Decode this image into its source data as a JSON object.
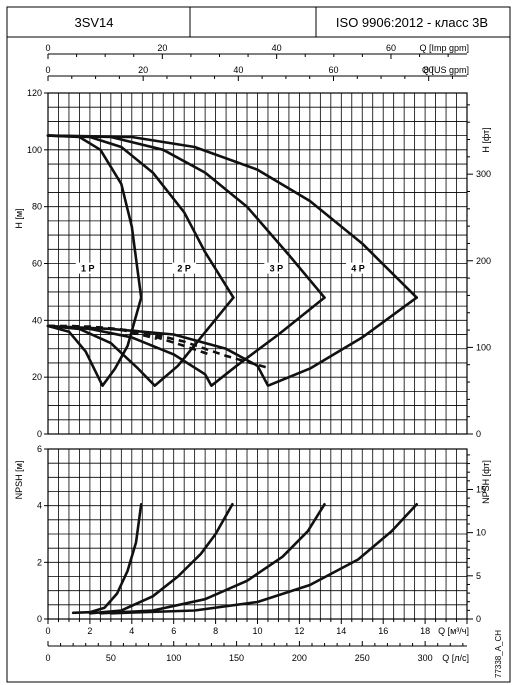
{
  "header": {
    "model": "3SV14",
    "standard": "ISO 9906:2012 - класс 3B"
  },
  "side_code": "77338_A_CH",
  "chart_data": [
    {
      "type": "line",
      "title": "",
      "ylabel": "H [м]",
      "ylabel_right": "H [фт]",
      "ylim": [
        0,
        120
      ],
      "yticks": [
        0,
        20,
        40,
        60,
        80,
        100,
        120
      ],
      "ylim_right": [
        0,
        393.7
      ],
      "yticks_right": [
        0,
        100,
        200,
        300
      ],
      "x_unit": "Q [м³/ч]",
      "xlim": [
        0,
        20
      ],
      "top_axes": [
        {
          "label": "Q [Imp gpm]",
          "ticks": [
            0,
            20,
            40,
            60
          ],
          "max": 73.3
        },
        {
          "label": "Q [US gpm]",
          "ticks": [
            0,
            20,
            40,
            60,
            80
          ],
          "max": 88.06
        }
      ],
      "grid": true,
      "curve_labels": [
        "1 P",
        "2 P",
        "3 P",
        "4 P"
      ],
      "series": [
        {
          "name": "1 P",
          "style": "solid",
          "points": [
            [
              0,
              105
            ],
            [
              1.5,
              104.5
            ],
            [
              2.5,
              100
            ],
            [
              3.5,
              88
            ],
            [
              4,
              73
            ],
            [
              4.45,
              48
            ]
          ]
        },
        {
          "name": "2 P",
          "style": "solid",
          "points": [
            [
              0,
              105
            ],
            [
              2,
              104.5
            ],
            [
              3.5,
              101
            ],
            [
              5,
              92
            ],
            [
              6.5,
              78
            ],
            [
              7.5,
              64
            ],
            [
              8.85,
              48
            ]
          ]
        },
        {
          "name": "3 P",
          "style": "solid",
          "points": [
            [
              0,
              105
            ],
            [
              3,
              104.5
            ],
            [
              5.5,
              100
            ],
            [
              7.5,
              92
            ],
            [
              9.5,
              80
            ],
            [
              11.5,
              63
            ],
            [
              13.2,
              48
            ]
          ]
        },
        {
          "name": "4 P",
          "style": "solid",
          "points": [
            [
              0,
              105
            ],
            [
              4,
              104.5
            ],
            [
              7,
              101
            ],
            [
              10,
              93
            ],
            [
              12.5,
              82
            ],
            [
              15,
              67
            ],
            [
              17.6,
              48
            ]
          ]
        },
        {
          "name": "",
          "style": "solid",
          "points": [
            [
              0,
              38
            ],
            [
              1,
              36
            ],
            [
              1.8,
              29
            ],
            [
              2.4,
              20
            ],
            [
              2.6,
              17
            ],
            [
              3.2,
              23
            ],
            [
              3.8,
              31
            ],
            [
              4.45,
              48
            ]
          ]
        },
        {
          "name": "",
          "style": "solid",
          "points": [
            [
              0,
              38
            ],
            [
              1.5,
              37
            ],
            [
              3,
              32
            ],
            [
              4.3,
              23
            ],
            [
              5.1,
              17
            ],
            [
              6.2,
              24
            ],
            [
              7.3,
              34
            ],
            [
              8.85,
              48
            ]
          ]
        },
        {
          "name": "",
          "style": "solid",
          "points": [
            [
              0,
              38
            ],
            [
              2,
              37
            ],
            [
              4,
              34
            ],
            [
              6,
              28
            ],
            [
              7.5,
              21
            ],
            [
              7.8,
              17
            ],
            [
              9,
              24
            ],
            [
              11,
              35
            ],
            [
              13.2,
              48
            ]
          ]
        },
        {
          "name": "",
          "style": "solid",
          "points": [
            [
              0,
              38
            ],
            [
              3,
              37
            ],
            [
              6,
              35
            ],
            [
              8.5,
              30
            ],
            [
              10,
              24
            ],
            [
              10.5,
              17
            ],
            [
              12.5,
              23
            ],
            [
              15,
              34
            ],
            [
              17.6,
              48
            ]
          ]
        },
        {
          "name": "",
          "style": "dashed",
          "points": [
            [
              0,
              38
            ],
            [
              1.2,
              38
            ],
            [
              2.6,
              37.3
            ],
            [
              3.6,
              36.5
            ],
            [
              4.4,
              35
            ],
            [
              5.2,
              33.5
            ]
          ]
        },
        {
          "name": "",
          "style": "dashed",
          "points": [
            [
              0,
              38
            ],
            [
              2,
              37.8
            ],
            [
              3.5,
              36.8
            ],
            [
              5,
              34.5
            ],
            [
              6.5,
              31
            ],
            [
              7.7,
              28
            ]
          ]
        },
        {
          "name": "",
          "style": "dashed",
          "points": [
            [
              0,
              38
            ],
            [
              2.5,
              37.5
            ],
            [
              4.5,
              36
            ],
            [
              6.5,
              32.5
            ],
            [
              8.5,
              27.5
            ],
            [
              10.4,
              23.5
            ]
          ]
        }
      ]
    },
    {
      "type": "line",
      "title": "",
      "ylabel": "NPSH [м]",
      "ylabel_right": "NPSH [фт]",
      "ylim": [
        0,
        6
      ],
      "yticks": [
        0,
        2,
        4,
        6
      ],
      "ylim_right": [
        0,
        19.685
      ],
      "yticks_right": [
        0,
        5,
        10,
        15
      ],
      "xlabel": "Q [м³/ч]",
      "xlim": [
        0,
        20
      ],
      "xticks": [
        0,
        2,
        4,
        6,
        8,
        10,
        12,
        14,
        16,
        18
      ],
      "bottom_axis": {
        "label": "Q [л/с]",
        "ticks": [
          0,
          50,
          100,
          150,
          200,
          250,
          300
        ],
        "max": 333.3
      },
      "grid": true,
      "series": [
        {
          "name": "1 P",
          "points": [
            [
              1.2,
              0.22
            ],
            [
              2,
              0.24
            ],
            [
              2.7,
              0.4
            ],
            [
              3.3,
              0.9
            ],
            [
              3.8,
              1.7
            ],
            [
              4.2,
              2.7
            ],
            [
              4.45,
              4.05
            ]
          ]
        },
        {
          "name": "2 P",
          "points": [
            [
              2,
              0.2
            ],
            [
              3.5,
              0.3
            ],
            [
              5,
              0.8
            ],
            [
              6.2,
              1.5
            ],
            [
              7.3,
              2.3
            ],
            [
              8,
              3
            ],
            [
              8.8,
              4.05
            ]
          ]
        },
        {
          "name": "3 P",
          "points": [
            [
              2.5,
              0.2
            ],
            [
              5,
              0.3
            ],
            [
              7.5,
              0.7
            ],
            [
              9.5,
              1.35
            ],
            [
              11.2,
              2.2
            ],
            [
              12.4,
              3.1
            ],
            [
              13.2,
              4.05
            ]
          ]
        },
        {
          "name": "4 P",
          "points": [
            [
              3,
              0.2
            ],
            [
              7,
              0.3
            ],
            [
              10,
              0.6
            ],
            [
              12.5,
              1.2
            ],
            [
              14.8,
              2.1
            ],
            [
              16.4,
              3.1
            ],
            [
              17.6,
              4.05
            ]
          ]
        }
      ]
    }
  ]
}
